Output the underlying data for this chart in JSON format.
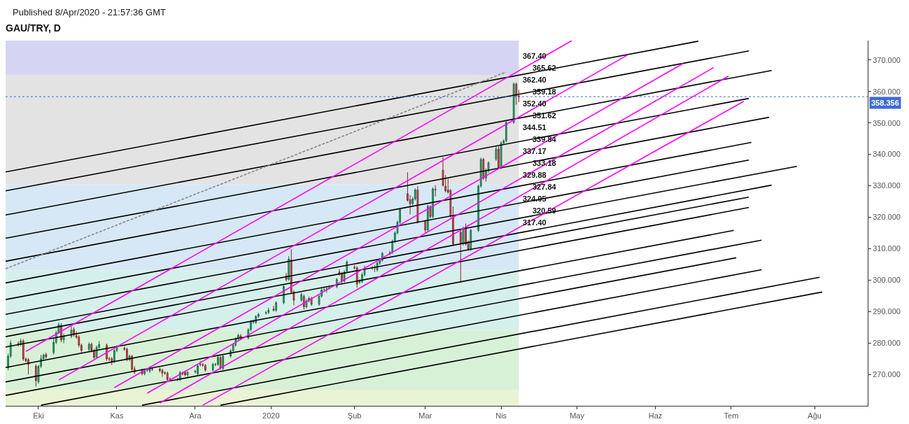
{
  "chart_data": {
    "type": "candlestick",
    "title": "GAU/TRY, D",
    "subtitle": "Published 8/Apr/2020 - 21:57:36 GMT",
    "annotations": [
      "367.40",
      "365.62",
      "362.40",
      "359.18",
      "352.40",
      "351.62",
      "344.51",
      "339.84",
      "337.17",
      "333.18",
      "329.88",
      "327.84",
      "324.95",
      "320.59",
      "317.40"
    ],
    "x": [
      "2019-09-19",
      "2019-09-20",
      "2019-09-23",
      "2019-09-24",
      "2019-09-25",
      "2019-09-26",
      "2019-09-27",
      "2019-09-30",
      "2019-10-01",
      "2019-10-02",
      "2019-10-03",
      "2019-10-04",
      "2019-10-07",
      "2019-10-08",
      "2019-10-09",
      "2019-10-10",
      "2019-10-11",
      "2019-10-14",
      "2019-10-15",
      "2019-10-16",
      "2019-10-17",
      "2019-10-18",
      "2019-10-21",
      "2019-10-22",
      "2019-10-23",
      "2019-10-24",
      "2019-10-25",
      "2019-10-28",
      "2019-10-29",
      "2019-10-30",
      "2019-10-31",
      "2019-11-01",
      "2019-11-04",
      "2019-11-05",
      "2019-11-06",
      "2019-11-07",
      "2019-11-08",
      "2019-11-11",
      "2019-11-12",
      "2019-11-13",
      "2019-11-14",
      "2019-11-15",
      "2019-11-18",
      "2019-11-19",
      "2019-11-20",
      "2019-11-21",
      "2019-11-22",
      "2019-11-25",
      "2019-11-26",
      "2019-11-27",
      "2019-11-28",
      "2019-11-29",
      "2019-12-02",
      "2019-12-03",
      "2019-12-04",
      "2019-12-05",
      "2019-12-06",
      "2019-12-09",
      "2019-12-10",
      "2019-12-11",
      "2019-12-12",
      "2019-12-13",
      "2019-12-16",
      "2019-12-17",
      "2019-12-18",
      "2019-12-19",
      "2019-12-20",
      "2019-12-23",
      "2019-12-24",
      "2019-12-25",
      "2019-12-26",
      "2019-12-27",
      "2019-12-30",
      "2019-12-31",
      "2020-01-02",
      "2020-01-03",
      "2020-01-06",
      "2020-01-07",
      "2020-01-08",
      "2020-01-09",
      "2020-01-10",
      "2020-01-13",
      "2020-01-14",
      "2020-01-15",
      "2020-01-16",
      "2020-01-17",
      "2020-01-20",
      "2020-01-21",
      "2020-01-22",
      "2020-01-23",
      "2020-01-24",
      "2020-01-27",
      "2020-01-28",
      "2020-01-29",
      "2020-01-30",
      "2020-01-31",
      "2020-02-03",
      "2020-02-04",
      "2020-02-05",
      "2020-02-06",
      "2020-02-07",
      "2020-02-10",
      "2020-02-11",
      "2020-02-12",
      "2020-02-13",
      "2020-02-14",
      "2020-02-17",
      "2020-02-18",
      "2020-02-19",
      "2020-02-20",
      "2020-02-21",
      "2020-02-24",
      "2020-02-25",
      "2020-02-26",
      "2020-02-27",
      "2020-02-28",
      "2020-03-02",
      "2020-03-03",
      "2020-03-04",
      "2020-03-05",
      "2020-03-06",
      "2020-03-09",
      "2020-03-10",
      "2020-03-11",
      "2020-03-12",
      "2020-03-13",
      "2020-03-16",
      "2020-03-17",
      "2020-03-18",
      "2020-03-19",
      "2020-03-20",
      "2020-03-23",
      "2020-03-24",
      "2020-03-25",
      "2020-03-26",
      "2020-03-27",
      "2020-03-30",
      "2020-03-31",
      "2020-04-01",
      "2020-04-02",
      "2020-04-03",
      "2020-04-06",
      "2020-04-07",
      "2020-04-08"
    ],
    "ohlc": [
      [
        272.1,
        276.6,
        271.3,
        275.8
      ],
      [
        275.8,
        280.8,
        275.2,
        279.9
      ],
      [
        279.8,
        280.5,
        278.9,
        279.6
      ],
      [
        279.6,
        281.4,
        279.0,
        280.6
      ],
      [
        280.6,
        281.2,
        274.3,
        274.9
      ],
      [
        274.9,
        275.4,
        273.8,
        274.3
      ],
      [
        274.7,
        275.2,
        270.0,
        273.2
      ],
      [
        272.6,
        273.2,
        266.1,
        268.0
      ],
      [
        267.6,
        273.0,
        267.0,
        272.6
      ],
      [
        272.6,
        276.2,
        272.0,
        275.0
      ],
      [
        275.0,
        276.6,
        274.5,
        276.1
      ],
      [
        276.3,
        276.9,
        275.0,
        275.6
      ],
      [
        276.9,
        281.7,
        276.3,
        280.2
      ],
      [
        280.2,
        283.9,
        279.6,
        283.2
      ],
      [
        283.2,
        286.5,
        282.8,
        285.8
      ],
      [
        285.6,
        286.3,
        280.2,
        281.0
      ],
      [
        281.0,
        283.0,
        279.9,
        282.1
      ],
      [
        282.1,
        285.3,
        281.5,
        284.1
      ],
      [
        284.3,
        285.0,
        282.0,
        282.6
      ],
      [
        282.4,
        283.7,
        281.3,
        281.8
      ],
      [
        281.9,
        282.4,
        278.6,
        279.3
      ],
      [
        279.3,
        279.8,
        276.8,
        277.6
      ],
      [
        278.0,
        280.2,
        277.3,
        279.6
      ],
      [
        279.6,
        280.1,
        277.0,
        277.6
      ],
      [
        277.6,
        278.1,
        274.9,
        275.4
      ],
      [
        275.4,
        279.2,
        274.9,
        278.6
      ],
      [
        278.6,
        280.6,
        278.1,
        279.5
      ],
      [
        279.3,
        279.8,
        274.3,
        274.9
      ],
      [
        275.0,
        275.6,
        274.2,
        274.9
      ],
      [
        275.0,
        275.5,
        273.0,
        273.9
      ],
      [
        274.1,
        278.0,
        273.6,
        277.6
      ],
      [
        277.6,
        279.3,
        277.1,
        278.6
      ],
      [
        278.3,
        279.0,
        277.5,
        278.0
      ],
      [
        278.0,
        278.5,
        274.2,
        274.7
      ],
      [
        274.7,
        276.3,
        274.2,
        275.8
      ],
      [
        275.8,
        276.2,
        270.8,
        271.7
      ],
      [
        271.7,
        272.6,
        270.1,
        270.7
      ],
      [
        271.2,
        271.8,
        269.7,
        270.2
      ],
      [
        270.2,
        271.6,
        269.7,
        271.0
      ],
      [
        271.3,
        272.0,
        270.8,
        271.5
      ],
      [
        271.0,
        272.6,
        270.5,
        271.9
      ],
      [
        271.7,
        272.2,
        271.1,
        271.6
      ],
      [
        271.7,
        272.2,
        270.6,
        271.2
      ],
      [
        271.3,
        271.8,
        269.2,
        270.4
      ],
      [
        270.5,
        271.0,
        269.9,
        270.4
      ],
      [
        270.4,
        270.9,
        267.9,
        268.4
      ],
      [
        268.5,
        269.0,
        267.9,
        268.4
      ],
      [
        268.3,
        268.9,
        267.8,
        268.4
      ],
      [
        268.4,
        271.1,
        267.9,
        270.6
      ],
      [
        270.4,
        270.9,
        269.7,
        270.2
      ],
      [
        270.7,
        271.2,
        269.4,
        269.9
      ],
      [
        269.8,
        271.1,
        268.8,
        270.6
      ],
      [
        270.8,
        271.5,
        270.3,
        271.0
      ],
      [
        270.2,
        273.3,
        269.7,
        272.7
      ],
      [
        273.0,
        274.3,
        272.6,
        273.2
      ],
      [
        273.1,
        273.6,
        272.4,
        272.9
      ],
      [
        272.8,
        273.3,
        270.9,
        271.4
      ],
      [
        271.4,
        273.7,
        270.9,
        273.2
      ],
      [
        273.1,
        273.7,
        272.6,
        273.2
      ],
      [
        273.2,
        276.3,
        272.7,
        275.4
      ],
      [
        275.4,
        275.9,
        271.4,
        271.9
      ],
      [
        271.9,
        276.3,
        271.4,
        275.8
      ],
      [
        275.8,
        278.0,
        275.3,
        277.5
      ],
      [
        277.5,
        279.8,
        277.0,
        279.3
      ],
      [
        279.3,
        281.8,
        278.8,
        281.3
      ],
      [
        281.3,
        283.0,
        280.8,
        282.4
      ],
      [
        282.2,
        282.8,
        281.1,
        281.6
      ],
      [
        281.6,
        284.7,
        281.1,
        284.2
      ],
      [
        284.2,
        287.3,
        283.7,
        286.8
      ],
      [
        286.6,
        287.4,
        286.1,
        286.8
      ],
      [
        286.5,
        288.9,
        286.0,
        288.4
      ],
      [
        288.4,
        289.6,
        287.9,
        289.1
      ],
      [
        289.5,
        290.2,
        289.0,
        289.7
      ],
      [
        289.7,
        291.2,
        289.2,
        290.4
      ],
      [
        290.8,
        291.8,
        290.0,
        290.4
      ],
      [
        290.4,
        293.3,
        289.9,
        292.8
      ],
      [
        292.8,
        298.5,
        292.3,
        298.0
      ],
      [
        301.3,
        302.3,
        299.6,
        300.2
      ],
      [
        300.2,
        307.6,
        299.8,
        306.7
      ],
      [
        306.5,
        309.9,
        295.5,
        296.2
      ],
      [
        296.2,
        296.8,
        292.0,
        293.6
      ],
      [
        293.6,
        296.0,
        293.0,
        295.4
      ],
      [
        294.8,
        295.4,
        290.6,
        291.5
      ],
      [
        291.5,
        294.0,
        291.0,
        293.4
      ],
      [
        293.4,
        294.8,
        292.9,
        294.2
      ],
      [
        294.2,
        294.7,
        291.8,
        292.3
      ],
      [
        292.3,
        295.5,
        291.8,
        294.9
      ],
      [
        294.9,
        297.4,
        294.4,
        296.9
      ],
      [
        296.8,
        297.9,
        296.3,
        296.9
      ],
      [
        297.2,
        298.0,
        296.0,
        297.3
      ],
      [
        297.5,
        298.3,
        297.0,
        297.6
      ],
      [
        297.9,
        300.7,
        297.4,
        300.2
      ],
      [
        302.6,
        303.5,
        301.4,
        301.9
      ],
      [
        302.1,
        302.6,
        298.8,
        299.7
      ],
      [
        299.7,
        303.2,
        299.2,
        302.6
      ],
      [
        302.8,
        306.3,
        302.3,
        305.8
      ],
      [
        304.1,
        304.8,
        303.4,
        303.9
      ],
      [
        303.9,
        304.4,
        297.6,
        298.7
      ],
      [
        299.3,
        300.2,
        298.8,
        299.5
      ],
      [
        299.5,
        302.4,
        299.0,
        301.7
      ],
      [
        301.7,
        304.6,
        301.2,
        303.9
      ],
      [
        303.8,
        304.5,
        303.3,
        303.9
      ],
      [
        304.0,
        304.8,
        302.6,
        303.9
      ],
      [
        303.2,
        305.9,
        302.7,
        305.4
      ],
      [
        305.4,
        307.0,
        304.9,
        306.5
      ],
      [
        306.3,
        309.0,
        305.8,
        308.5
      ],
      [
        308.3,
        309.3,
        307.8,
        308.8
      ],
      [
        308.8,
        312.9,
        308.3,
        312.4
      ],
      [
        312.2,
        315.5,
        311.7,
        315.0
      ],
      [
        315.0,
        318.9,
        314.5,
        318.4
      ],
      [
        318.4,
        322.9,
        317.9,
        322.4
      ],
      [
        327.5,
        334.3,
        325.0,
        325.4
      ],
      [
        325.6,
        327.0,
        320.9,
        324.3
      ],
      [
        324.3,
        326.5,
        323.6,
        325.8
      ],
      [
        325.8,
        329.2,
        325.3,
        328.7
      ],
      [
        328.7,
        329.9,
        318.0,
        318.4
      ],
      [
        318.7,
        319.2,
        315.0,
        315.9
      ],
      [
        315.9,
        324.0,
        315.4,
        323.5
      ],
      [
        323.3,
        323.8,
        319.6,
        320.2
      ],
      [
        320.2,
        329.5,
        319.7,
        329.0
      ],
      [
        328.9,
        330.2,
        326.6,
        328.7
      ],
      [
        335.0,
        339.1,
        329.7,
        330.2
      ],
      [
        329.9,
        333.4,
        327.9,
        328.4
      ],
      [
        328.7,
        332.3,
        327.5,
        328.0
      ],
      [
        328.5,
        329.0,
        319.9,
        320.4
      ],
      [
        320.4,
        323.4,
        311.0,
        311.5
      ],
      [
        315.2,
        316.0,
        299.5,
        311.5
      ],
      [
        311.5,
        317.0,
        311.0,
        316.5
      ],
      [
        316.7,
        318.0,
        311.0,
        311.5
      ],
      [
        312.1,
        312.6,
        309.3,
        309.8
      ],
      [
        309.8,
        316.3,
        309.3,
        315.8
      ],
      [
        315.8,
        330.4,
        315.3,
        329.9
      ],
      [
        329.9,
        339.0,
        329.4,
        338.4
      ],
      [
        338.4,
        338.9,
        331.9,
        332.4
      ],
      [
        332.4,
        335.5,
        331.3,
        334.7
      ],
      [
        334.7,
        337.8,
        334.2,
        337.3
      ],
      [
        338.4,
        342.6,
        337.9,
        341.7
      ],
      [
        341.7,
        342.6,
        335.3,
        335.8
      ],
      [
        335.8,
        344.1,
        335.3,
        343.6
      ],
      [
        343.6,
        344.8,
        343.1,
        344.3
      ],
      [
        344.3,
        350.7,
        343.8,
        350.2
      ],
      [
        350.2,
        362.9,
        349.7,
        362.4
      ],
      [
        362.4,
        362.9,
        355.8,
        358.6
      ],
      [
        358.6,
        360.5,
        356.6,
        358.36
      ]
    ],
    "series": [
      {
        "type": "line",
        "color": "#000000",
        "x": [
          "2019-09-18",
          "2020-06-18"
        ],
        "values": [
          334.4,
          376.0
        ]
      },
      {
        "type": "line",
        "color": "#000000",
        "x": [
          "2019-09-18",
          "2020-07-08"
        ],
        "values": [
          328.4,
          372.9
        ]
      },
      {
        "type": "line",
        "color": "#000000",
        "x": [
          "2019-09-18",
          "2020-07-17"
        ],
        "values": [
          320.7,
          366.7
        ]
      },
      {
        "type": "line",
        "color": "#000000",
        "x": [
          "2019-09-18",
          "2020-07-08"
        ],
        "values": [
          313.3,
          357.8
        ]
      },
      {
        "type": "line",
        "color": "#000000",
        "x": [
          "2019-09-18",
          "2020-07-16"
        ],
        "values": [
          306.0,
          351.8
        ]
      },
      {
        "type": "line",
        "color": "#000000",
        "x": [
          "2019-09-18",
          "2020-07-09"
        ],
        "values": [
          299.1,
          343.8
        ]
      },
      {
        "type": "line",
        "color": "#000000",
        "x": [
          "2019-09-18",
          "2020-07-08"
        ],
        "values": [
          293.8,
          338.2
        ]
      },
      {
        "type": "line",
        "color": "#000000",
        "x": [
          "2019-09-18",
          "2020-07-27"
        ],
        "values": [
          289.1,
          336.2
        ]
      },
      {
        "type": "line",
        "color": "#000000",
        "x": [
          "2019-09-18",
          "2020-07-17"
        ],
        "values": [
          284.2,
          330.2
        ]
      },
      {
        "type": "line",
        "color": "#000000",
        "x": [
          "2019-09-18",
          "2020-07-08"
        ],
        "values": [
          282.0,
          326.4
        ]
      },
      {
        "type": "line",
        "color": "#000000",
        "x": [
          "2019-09-18",
          "2020-07-08"
        ],
        "values": [
          278.7,
          323.1
        ]
      },
      {
        "type": "line",
        "color": "#000000",
        "x": [
          "2019-09-18",
          "2020-07-02"
        ],
        "values": [
          272.2,
          315.8
        ]
      },
      {
        "type": "line",
        "color": "#000000",
        "x": [
          "2019-09-18",
          "2020-07-13"
        ],
        "values": [
          267.6,
          312.7
        ]
      },
      {
        "type": "line",
        "color": "#000000",
        "x": [
          "2019-09-18",
          "2020-07-03"
        ],
        "values": [
          263.3,
          307.1
        ]
      },
      {
        "type": "line",
        "color": "#000000",
        "x": [
          "2019-10-02",
          "2020-07-13"
        ],
        "values": [
          260.2,
          303.3
        ]
      },
      {
        "type": "line",
        "color": "#000000",
        "x": [
          "2019-11-11",
          "2020-08-05"
        ],
        "values": [
          260.2,
          300.9
        ]
      },
      {
        "type": "line",
        "color": "#000000",
        "x": [
          "2019-12-12",
          "2020-08-06"
        ],
        "values": [
          260.2,
          296.2
        ]
      },
      {
        "type": "line",
        "color": "#ff00ff",
        "x": [
          "2019-09-26",
          "2020-04-29"
        ],
        "values": [
          277.3,
          376.2
        ]
      },
      {
        "type": "line",
        "color": "#ff00ff",
        "x": [
          "2019-10-09",
          "2020-05-21"
        ],
        "values": [
          268.2,
          371.6
        ]
      },
      {
        "type": "line",
        "color": "#ff00ff",
        "x": [
          "2019-10-31",
          "2020-06-12"
        ],
        "values": [
          265.8,
          368.9
        ]
      },
      {
        "type": "line",
        "color": "#ff00ff",
        "x": [
          "2019-11-13",
          "2020-06-24"
        ],
        "values": [
          264.0,
          367.6
        ]
      },
      {
        "type": "line",
        "color": "#ff00ff",
        "x": [
          "2019-11-18",
          "2020-06-30"
        ],
        "values": [
          260.9,
          364.9
        ]
      },
      {
        "type": "line",
        "color": "#ff00ff",
        "x": [
          "2019-12-05",
          "2020-07-06"
        ],
        "values": [
          260.2,
          356.9
        ]
      },
      {
        "type": "line",
        "color": "#888888",
        "line_style": "dashed",
        "x": [
          "2019-09-18",
          "2020-04-03"
        ],
        "values": [
          303.6,
          366.2
        ]
      }
    ],
    "bands": [
      {
        "axis": "y",
        "from": 365.3,
        "to": 376.2,
        "color": "#d5d5f3"
      },
      {
        "axis": "y",
        "from": 330.4,
        "to": 365.3,
        "color": "#e3e3e3"
      },
      {
        "axis": "y",
        "from": 303.1,
        "to": 330.4,
        "color": "#d6e8f5"
      },
      {
        "axis": "y",
        "from": 284.0,
        "to": 303.1,
        "color": "#d5f0ea"
      },
      {
        "axis": "y",
        "from": 265.1,
        "to": 284.0,
        "color": "#d7f1d7"
      },
      {
        "axis": "y",
        "from": 260.0,
        "to": 265.1,
        "color": "#eaf3d5"
      }
    ],
    "ref_lines": [
      {
        "axis": "y",
        "value": 358.356,
        "label": "358.356",
        "color": "#3f6ad8",
        "line_style": "dotted"
      }
    ],
    "xlim": [
      "2019-09-18",
      "2020-08-24"
    ],
    "xticks": [
      {
        "value": "2019-10-01",
        "label": "Eki"
      },
      {
        "value": "2019-11-01",
        "label": "Kas"
      },
      {
        "value": "2019-12-02",
        "label": "Ara"
      },
      {
        "value": "2020-01-01",
        "label": "2020"
      },
      {
        "value": "2020-02-03",
        "label": "Şub"
      },
      {
        "value": "2020-03-02",
        "label": "Mar"
      },
      {
        "value": "2020-04-01",
        "label": "Nis"
      },
      {
        "value": "2020-05-01",
        "label": "May"
      },
      {
        "value": "2020-06-01",
        "label": "Haz"
      },
      {
        "value": "2020-07-01",
        "label": "Tem"
      },
      {
        "value": "2020-08-03",
        "label": "Ağu"
      }
    ],
    "ylim": [
      260,
      376.2
    ],
    "yticks": [
      {
        "value": 270,
        "label": "270.000"
      },
      {
        "value": 280,
        "label": "280.000"
      },
      {
        "value": 290,
        "label": "290.000"
      },
      {
        "value": 300,
        "label": "300.000"
      },
      {
        "value": 310,
        "label": "310.000"
      },
      {
        "value": 320,
        "label": "320.000"
      },
      {
        "value": 330,
        "label": "330.000"
      },
      {
        "value": 340,
        "label": "340.000"
      },
      {
        "value": 350,
        "label": "350.000"
      },
      {
        "value": 360,
        "label": "360.000"
      },
      {
        "value": 370,
        "label": "370.000"
      }
    ],
    "grid": false
  }
}
